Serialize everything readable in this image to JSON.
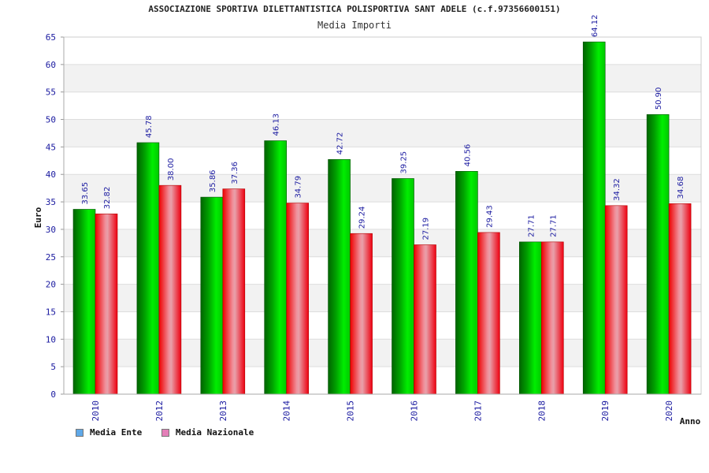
{
  "header": {
    "title": "ASSOCIAZIONE SPORTIVA DILETTANTISTICA POLISPORTIVA SANT ADELE (c.f.97356600151)",
    "subtitle": "Media Importi"
  },
  "legend": {
    "ente_label": "Media Ente",
    "nazionale_label": "Media Nazionale",
    "ente_color": "#5fa8e8",
    "nazionale_color": "#e47fb8"
  },
  "chart_data": {
    "type": "bar",
    "title": "Media Importi",
    "xlabel": "Anno",
    "ylabel": "Euro",
    "ylim": [
      0,
      65
    ],
    "yticks": [
      0,
      5,
      10,
      15,
      20,
      25,
      30,
      35,
      40,
      45,
      50,
      55,
      60,
      65
    ],
    "categories": [
      "2010",
      "2012",
      "2013",
      "2014",
      "2015",
      "2016",
      "2017",
      "2018",
      "2019",
      "2020"
    ],
    "series": [
      {
        "name": "Media Ente",
        "values": [
          33.65,
          45.78,
          35.86,
          46.13,
          42.72,
          39.25,
          40.56,
          27.71,
          64.12,
          50.9
        ],
        "labels": [
          "33.65",
          "45.78",
          "35.86",
          "46.13",
          "42.72",
          "39.25",
          "40.56",
          "27.71",
          "64.12",
          "50.90"
        ],
        "color": "#00c000"
      },
      {
        "name": "Media Nazionale",
        "values": [
          32.82,
          38.0,
          37.36,
          34.79,
          29.24,
          27.19,
          29.43,
          27.71,
          34.32,
          34.68
        ],
        "labels": [
          "32.82",
          "38.00",
          "37.36",
          "34.79",
          "29.24",
          "27.19",
          "29.43",
          "27.71",
          "34.32",
          "34.68"
        ],
        "color": "#ee1c24"
      }
    ],
    "grid": true,
    "legend_position": "bottom-left"
  }
}
